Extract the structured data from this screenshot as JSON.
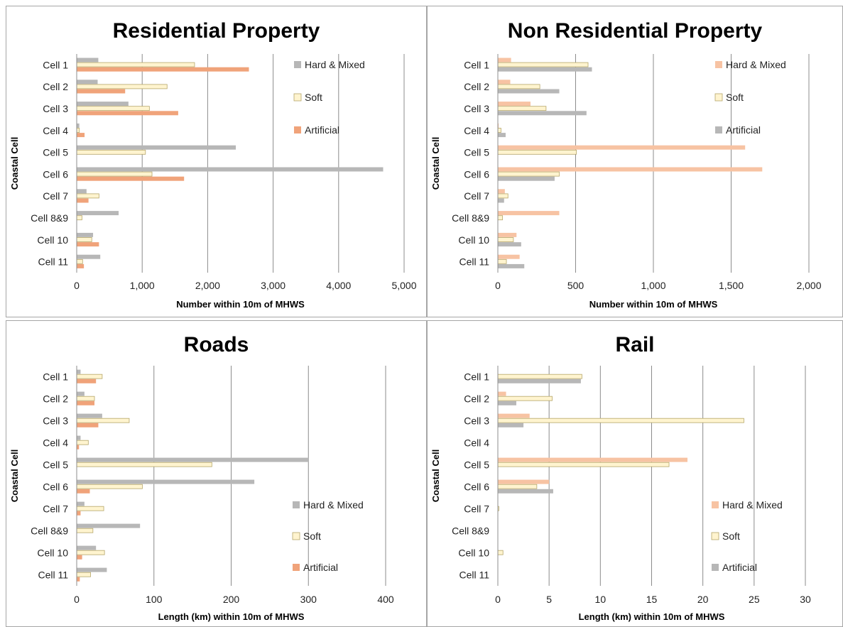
{
  "colors": {
    "hard_mixed_gray": "#b7b7b7",
    "soft": "#fff4cf",
    "soft_border": "#b5a66a",
    "artificial_orange": "#f0a37a",
    "hard_mixed_peach": "#f7c3a3",
    "artificial_gray": "#b7b7b7",
    "grid": "#8c8c8c"
  },
  "chart_data": [
    {
      "id": "residential",
      "type": "bar",
      "orientation": "horizontal",
      "title": "Residential Property",
      "xlabel": "Number within 10m of MHWS",
      "ylabel": "Coastal Cell",
      "xlim": [
        0,
        5000
      ],
      "xticks": [
        0,
        1000,
        2000,
        3000,
        4000,
        5000
      ],
      "xtick_labels": [
        "0",
        "1,000",
        "2,000",
        "3,000",
        "4,000",
        "5,000"
      ],
      "categories": [
        "Cell 1",
        "Cell 2",
        "Cell 3",
        "Cell 4",
        "Cell 5",
        "Cell 6",
        "Cell 7",
        "Cell 8&9",
        "Cell 10",
        "Cell 11"
      ],
      "grid": true,
      "legend_position": "top-right",
      "series": [
        {
          "name": "Hard & Mixed",
          "color": "#b7b7b7",
          "values": [
            330,
            320,
            790,
            40,
            2430,
            4680,
            150,
            640,
            250,
            360
          ]
        },
        {
          "name": "Soft",
          "color": "#fff4cf",
          "values": [
            1800,
            1380,
            1110,
            40,
            1050,
            1150,
            340,
            80,
            230,
            90
          ]
        },
        {
          "name": "Artificial",
          "color": "#f0a37a",
          "values": [
            2630,
            740,
            1550,
            120,
            0,
            1640,
            180,
            0,
            340,
            110
          ]
        }
      ]
    },
    {
      "id": "nonresidential",
      "type": "bar",
      "orientation": "horizontal",
      "title": "Non Residential Property",
      "xlabel": "Number within 10m of MHWS",
      "ylabel": "Coastal Cell",
      "xlim": [
        0,
        2000
      ],
      "xticks": [
        0,
        500,
        1000,
        1500,
        2000
      ],
      "xtick_labels": [
        "0",
        "500",
        "1,000",
        "1,500",
        "2,000"
      ],
      "categories": [
        "Cell 1",
        "Cell 2",
        "Cell 3",
        "Cell 4",
        "Cell 5",
        "Cell 6",
        "Cell 7",
        "Cell 8&9",
        "Cell 10",
        "Cell 11"
      ],
      "grid": true,
      "legend_position": "top-right",
      "series": [
        {
          "name": "Hard & Mixed",
          "color": "#f7c3a3",
          "values": [
            85,
            80,
            210,
            5,
            1590,
            1700,
            45,
            395,
            120,
            140
          ]
        },
        {
          "name": "Soft",
          "color": "#fff4cf",
          "values": [
            580,
            270,
            310,
            20,
            505,
            395,
            65,
            30,
            100,
            55
          ]
        },
        {
          "name": "Artificial",
          "color": "#b7b7b7",
          "values": [
            605,
            395,
            570,
            50,
            0,
            365,
            40,
            0,
            150,
            170
          ]
        }
      ]
    },
    {
      "id": "roads",
      "type": "bar",
      "orientation": "horizontal",
      "title": "Roads",
      "xlabel": "Length (km) within 10m of MHWS",
      "ylabel": "Coastal Cell",
      "xlim": [
        0,
        400
      ],
      "xticks": [
        0,
        100,
        200,
        300,
        400
      ],
      "xtick_labels": [
        "0",
        "100",
        "200",
        "300",
        "400"
      ],
      "categories": [
        "Cell 1",
        "Cell 2",
        "Cell 3",
        "Cell 4",
        "Cell 5",
        "Cell 6",
        "Cell 7",
        "Cell 8&9",
        "Cell 10",
        "Cell 11"
      ],
      "grid": true,
      "legend_position": "bottom-right",
      "series": [
        {
          "name": "Hard & Mixed",
          "color": "#b7b7b7",
          "values": [
            5,
            10,
            33,
            5,
            300,
            230,
            10,
            82,
            25,
            39
          ]
        },
        {
          "name": "Soft",
          "color": "#fff4cf",
          "values": [
            33,
            23,
            68,
            15,
            175,
            85,
            35,
            21,
            36,
            18
          ]
        },
        {
          "name": "Artificial",
          "color": "#f0a37a",
          "values": [
            25,
            23,
            28,
            3,
            0,
            17,
            5,
            0,
            7,
            4
          ]
        }
      ]
    },
    {
      "id": "rail",
      "type": "bar",
      "orientation": "horizontal",
      "title": "Rail",
      "xlabel": "Length (km) within 10m of MHWS",
      "ylabel": "Coastal Cell",
      "xlim": [
        0,
        30
      ],
      "xticks": [
        0,
        5,
        10,
        15,
        20,
        25,
        30
      ],
      "xtick_labels": [
        "0",
        "5",
        "10",
        "15",
        "20",
        "25",
        "30"
      ],
      "categories": [
        "Cell 1",
        "Cell 2",
        "Cell 3",
        "Cell 4",
        "Cell 5",
        "Cell 6",
        "Cell 7",
        "Cell 8&9",
        "Cell 10",
        "Cell 11"
      ],
      "grid": true,
      "legend_position": "bottom-right",
      "series": [
        {
          "name": "Hard & Mixed",
          "color": "#f7c3a3",
          "values": [
            0,
            0.8,
            3.1,
            0,
            18.5,
            5.0,
            0,
            0,
            0,
            0
          ]
        },
        {
          "name": "Soft",
          "color": "#fff4cf",
          "values": [
            8.2,
            5.3,
            24.0,
            0,
            16.7,
            3.8,
            0.1,
            0,
            0.5,
            0
          ]
        },
        {
          "name": "Artificial",
          "color": "#b7b7b7",
          "values": [
            8.1,
            1.8,
            2.5,
            0,
            0,
            5.4,
            0,
            0,
            0,
            0
          ]
        }
      ]
    }
  ]
}
